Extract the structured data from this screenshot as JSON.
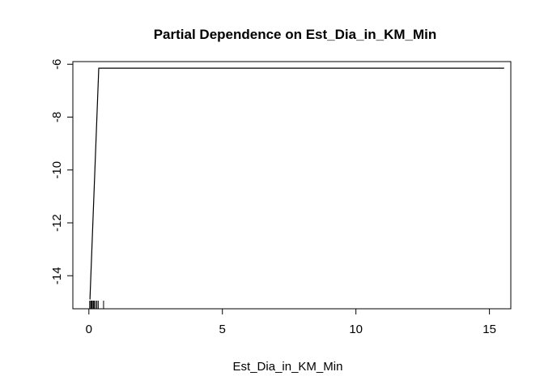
{
  "chart_data": {
    "type": "line",
    "title": "Partial Dependence on  Est_Dia_in_KM_Min",
    "xlabel": "Est_Dia_in_KM_Min",
    "ylabel": "",
    "xlim": [
      -0.6,
      15.8
    ],
    "ylim": [
      -15.25,
      -5.9
    ],
    "x_ticks": [
      0,
      5,
      10,
      15
    ],
    "y_ticks": [
      -14,
      -12,
      -10,
      -8,
      -6
    ],
    "x_tick_labels": [
      "0",
      "5",
      "10",
      "15"
    ],
    "y_tick_labels": [
      "-14",
      "-12",
      "-10",
      "-8",
      "-6"
    ],
    "series": [
      {
        "x": [
          0.04,
          0.37,
          15.55
        ],
        "y": [
          -14.9,
          -6.15,
          -6.15
        ]
      }
    ],
    "rug": [
      0.03,
      0.07,
      0.1,
      0.13,
      0.17,
      0.2,
      0.25,
      0.3,
      0.35,
      0.55
    ],
    "grid": false,
    "line_color": "#000000"
  }
}
